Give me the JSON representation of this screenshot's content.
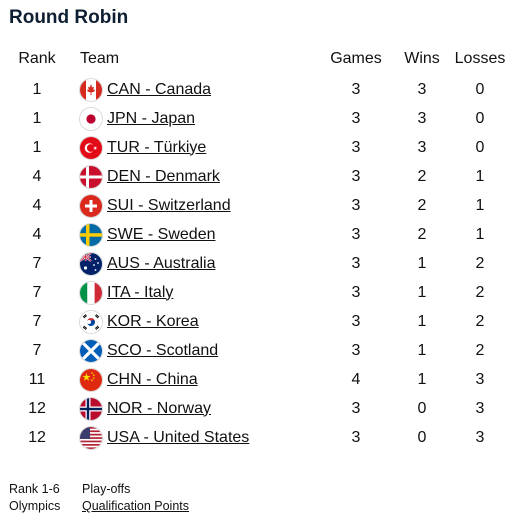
{
  "title": "Round Robin",
  "columns": {
    "rank": "Rank",
    "team": "Team",
    "games": "Games",
    "wins": "Wins",
    "losses": "Losses"
  },
  "rows": [
    {
      "rank": "1",
      "team": "CAN - Canada",
      "flag": "canada-flag-icon",
      "games": "3",
      "wins": "3",
      "losses": "0"
    },
    {
      "rank": "1",
      "team": "JPN - Japan",
      "flag": "japan-flag-icon",
      "games": "3",
      "wins": "3",
      "losses": "0"
    },
    {
      "rank": "1",
      "team": "TUR - Türkiye",
      "flag": "turkiye-flag-icon",
      "games": "3",
      "wins": "3",
      "losses": "0"
    },
    {
      "rank": "4",
      "team": "DEN - Denmark",
      "flag": "denmark-flag-icon",
      "games": "3",
      "wins": "2",
      "losses": "1"
    },
    {
      "rank": "4",
      "team": "SUI - Switzerland",
      "flag": "switzerland-flag-icon",
      "games": "3",
      "wins": "2",
      "losses": "1"
    },
    {
      "rank": "4",
      "team": "SWE - Sweden",
      "flag": "sweden-flag-icon",
      "games": "3",
      "wins": "2",
      "losses": "1"
    },
    {
      "rank": "7",
      "team": "AUS - Australia",
      "flag": "australia-flag-icon",
      "games": "3",
      "wins": "1",
      "losses": "2"
    },
    {
      "rank": "7",
      "team": "ITA - Italy",
      "flag": "italy-flag-icon",
      "games": "3",
      "wins": "1",
      "losses": "2"
    },
    {
      "rank": "7",
      "team": "KOR - Korea",
      "flag": "korea-flag-icon",
      "games": "3",
      "wins": "1",
      "losses": "2"
    },
    {
      "rank": "7",
      "team": "SCO - Scotland",
      "flag": "scotland-flag-icon",
      "games": "3",
      "wins": "1",
      "losses": "2"
    },
    {
      "rank": "11",
      "team": "CHN - China",
      "flag": "china-flag-icon",
      "games": "4",
      "wins": "1",
      "losses": "3"
    },
    {
      "rank": "12",
      "team": "NOR - Norway",
      "flag": "norway-flag-icon",
      "games": "3",
      "wins": "0",
      "losses": "3"
    },
    {
      "rank": "12",
      "team": "USA - United States",
      "flag": "usa-flag-icon",
      "games": "3",
      "wins": "0",
      "losses": "3"
    }
  ],
  "legend": [
    {
      "key": "Rank 1-6",
      "value": "Play-offs"
    },
    {
      "key": "Olympics",
      "value": "Qualification Points"
    }
  ]
}
